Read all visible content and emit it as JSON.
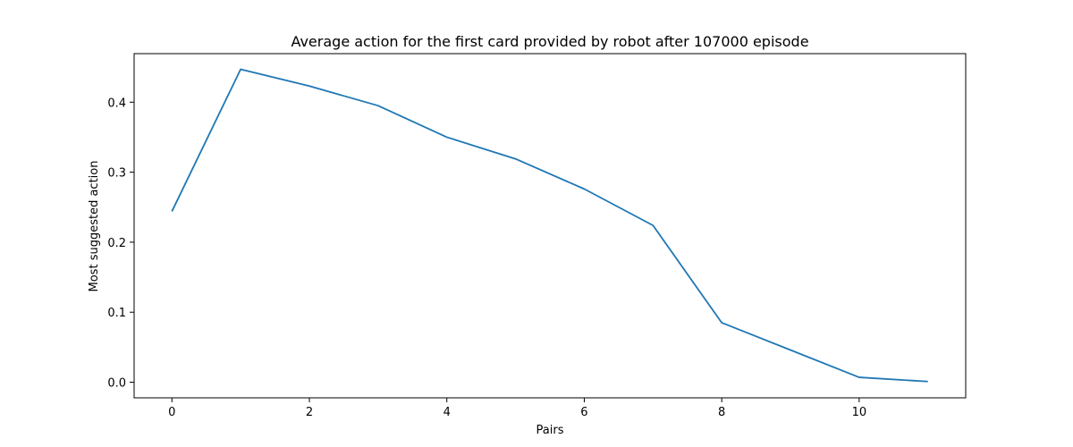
{
  "chart_data": {
    "type": "line",
    "title": "Average action for the first card provided by robot after 107000 episode",
    "xlabel": "Pairs",
    "ylabel": "Most suggested action",
    "x": [
      0,
      1,
      2,
      3,
      4,
      5,
      6,
      7,
      8,
      9,
      10,
      11
    ],
    "series": [
      {
        "values": [
          0.244,
          0.447,
          0.423,
          0.395,
          0.35,
          0.319,
          0.276,
          0.224,
          0.085,
          0.046,
          0.007,
          0.001
        ],
        "color": "#1f77b4"
      }
    ],
    "xlim": [
      -0.55,
      11.55
    ],
    "ylim": [
      -0.0223,
      0.4693
    ],
    "xticks": [
      0,
      2,
      4,
      6,
      8,
      10
    ],
    "yticks": [
      0.0,
      0.1,
      0.2,
      0.3,
      0.4
    ],
    "grid": false,
    "legend": false
  }
}
